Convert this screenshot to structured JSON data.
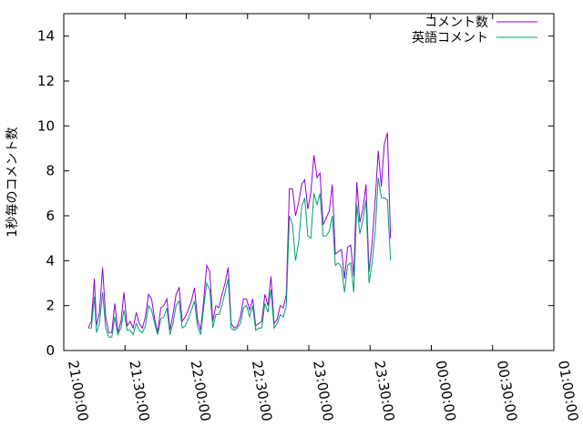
{
  "chart_data": {
    "type": "line",
    "title": "",
    "xlabel": "",
    "ylabel": "1秒毎のコメント数",
    "ylim": [
      0,
      15
    ],
    "yticks": [
      0,
      2,
      4,
      6,
      8,
      10,
      12,
      14
    ],
    "xlim": [
      "21:00:00",
      "01:00:00"
    ],
    "xticks": [
      "21:00:00",
      "21:30:00",
      "22:00:00",
      "22:30:00",
      "23:00:00",
      "23:30:00",
      "00:00:00",
      "00:30:00",
      "01:00:00"
    ],
    "legend_position": "top-right",
    "grid": false,
    "series": [
      {
        "name": "コメント数",
        "color": "#9400d3",
        "points": [
          [
            "21:12:00",
            1.0
          ],
          [
            "21:13:30",
            1.3
          ],
          [
            "21:15:00",
            3.2
          ],
          [
            "21:16:00",
            1.1
          ],
          [
            "21:17:30",
            1.7
          ],
          [
            "21:19:00",
            3.7
          ],
          [
            "21:20:30",
            1.5
          ],
          [
            "21:22:00",
            0.8
          ],
          [
            "21:23:30",
            0.8
          ],
          [
            "21:25:00",
            2.1
          ],
          [
            "21:26:30",
            0.8
          ],
          [
            "21:28:00",
            1.3
          ],
          [
            "21:29:30",
            2.6
          ],
          [
            "21:31:00",
            1.1
          ],
          [
            "21:32:30",
            1.3
          ],
          [
            "21:34:00",
            1.0
          ],
          [
            "21:35:30",
            1.7
          ],
          [
            "21:37:00",
            1.2
          ],
          [
            "21:38:30",
            1.0
          ],
          [
            "21:40:00",
            1.5
          ],
          [
            "21:41:30",
            2.5
          ],
          [
            "21:43:00",
            2.3
          ],
          [
            "21:44:30",
            1.4
          ],
          [
            "21:46:00",
            0.8
          ],
          [
            "21:47:30",
            1.9
          ],
          [
            "21:49:00",
            2.0
          ],
          [
            "21:50:30",
            2.3
          ],
          [
            "21:52:00",
            0.9
          ],
          [
            "21:53:30",
            1.6
          ],
          [
            "21:55:00",
            2.5
          ],
          [
            "21:56:30",
            2.8
          ],
          [
            "21:58:00",
            1.3
          ],
          [
            "21:59:30",
            1.5
          ],
          [
            "22:01:00",
            1.8
          ],
          [
            "22:02:30",
            2.2
          ],
          [
            "22:04:00",
            2.8
          ],
          [
            "22:05:30",
            1.4
          ],
          [
            "22:07:00",
            0.9
          ],
          [
            "22:08:30",
            2.2
          ],
          [
            "22:10:00",
            3.8
          ],
          [
            "22:11:30",
            3.5
          ],
          [
            "22:13:00",
            1.3
          ],
          [
            "22:14:30",
            2.0
          ],
          [
            "22:16:00",
            1.9
          ],
          [
            "22:17:30",
            2.5
          ],
          [
            "22:19:00",
            3.0
          ],
          [
            "22:20:30",
            3.7
          ],
          [
            "22:22:00",
            1.2
          ],
          [
            "22:23:30",
            1.0
          ],
          [
            "22:25:00",
            1.1
          ],
          [
            "22:26:30",
            1.5
          ],
          [
            "22:28:00",
            2.3
          ],
          [
            "22:29:30",
            2.3
          ],
          [
            "22:31:00",
            1.8
          ],
          [
            "22:32:30",
            2.3
          ],
          [
            "22:34:00",
            1.1
          ],
          [
            "22:35:30",
            1.2
          ],
          [
            "22:37:00",
            1.3
          ],
          [
            "22:38:30",
            2.5
          ],
          [
            "22:40:00",
            2.0
          ],
          [
            "22:41:30",
            3.3
          ],
          [
            "22:43:00",
            1.2
          ],
          [
            "22:44:30",
            1.4
          ],
          [
            "22:46:00",
            2.0
          ],
          [
            "22:47:30",
            1.9
          ],
          [
            "22:49:00",
            2.5
          ],
          [
            "22:50:30",
            7.2
          ],
          [
            "22:52:00",
            7.2
          ],
          [
            "22:53:30",
            6.0
          ],
          [
            "22:55:00",
            6.6
          ],
          [
            "22:56:30",
            7.4
          ],
          [
            "22:58:00",
            7.6
          ],
          [
            "22:59:30",
            6.3
          ],
          [
            "23:01:00",
            7.0
          ],
          [
            "23:02:30",
            8.7
          ],
          [
            "23:04:00",
            7.7
          ],
          [
            "23:05:30",
            7.9
          ],
          [
            "23:07:00",
            5.6
          ],
          [
            "23:08:30",
            5.9
          ],
          [
            "23:10:00",
            6.2
          ],
          [
            "23:11:30",
            7.4
          ],
          [
            "23:13:00",
            4.3
          ],
          [
            "23:14:30",
            4.4
          ],
          [
            "23:16:00",
            4.5
          ],
          [
            "23:17:30",
            3.2
          ],
          [
            "23:19:00",
            4.6
          ],
          [
            "23:20:30",
            4.7
          ],
          [
            "23:22:00",
            3.3
          ],
          [
            "23:23:30",
            7.5
          ],
          [
            "23:25:00",
            5.7
          ],
          [
            "23:26:30",
            6.3
          ],
          [
            "23:28:00",
            7.4
          ],
          [
            "23:29:30",
            3.5
          ],
          [
            "23:31:00",
            4.8
          ],
          [
            "23:32:30",
            6.7
          ],
          [
            "23:34:00",
            8.9
          ],
          [
            "23:35:30",
            7.3
          ],
          [
            "23:37:00",
            9.2
          ],
          [
            "23:38:30",
            9.7
          ],
          [
            "23:40:00",
            5.0
          ]
        ]
      },
      {
        "name": "英語コメント",
        "color": "#009e73",
        "points": [
          [
            "21:12:00",
            1.0
          ],
          [
            "21:13:30",
            1.0
          ],
          [
            "21:15:00",
            2.4
          ],
          [
            "21:16:00",
            0.8
          ],
          [
            "21:17:30",
            1.2
          ],
          [
            "21:19:00",
            2.6
          ],
          [
            "21:20:30",
            1.0
          ],
          [
            "21:22:00",
            0.6
          ],
          [
            "21:23:30",
            0.6
          ],
          [
            "21:25:00",
            1.5
          ],
          [
            "21:26:30",
            0.7
          ],
          [
            "21:28:00",
            1.0
          ],
          [
            "21:29:30",
            1.8
          ],
          [
            "21:31:00",
            0.9
          ],
          [
            "21:32:30",
            0.9
          ],
          [
            "21:34:00",
            0.7
          ],
          [
            "21:35:30",
            1.2
          ],
          [
            "21:37:00",
            0.9
          ],
          [
            "21:38:30",
            0.8
          ],
          [
            "21:40:00",
            1.1
          ],
          [
            "21:41:30",
            2.0
          ],
          [
            "21:43:00",
            1.8
          ],
          [
            "21:44:30",
            1.2
          ],
          [
            "21:46:00",
            0.7
          ],
          [
            "21:47:30",
            1.4
          ],
          [
            "21:49:00",
            1.5
          ],
          [
            "21:50:30",
            1.9
          ],
          [
            "21:52:00",
            0.7
          ],
          [
            "21:53:30",
            1.2
          ],
          [
            "21:55:00",
            2.0
          ],
          [
            "21:56:30",
            2.2
          ],
          [
            "21:58:00",
            1.0
          ],
          [
            "21:59:30",
            1.1
          ],
          [
            "22:01:00",
            1.4
          ],
          [
            "22:02:30",
            1.8
          ],
          [
            "22:04:00",
            2.2
          ],
          [
            "22:05:30",
            1.1
          ],
          [
            "22:07:00",
            0.7
          ],
          [
            "22:08:30",
            1.9
          ],
          [
            "22:10:00",
            3.0
          ],
          [
            "22:11:30",
            2.7
          ],
          [
            "22:13:00",
            1.0
          ],
          [
            "22:14:30",
            1.6
          ],
          [
            "22:16:00",
            1.6
          ],
          [
            "22:17:30",
            2.0
          ],
          [
            "22:19:00",
            2.6
          ],
          [
            "22:20:30",
            3.2
          ],
          [
            "22:22:00",
            1.0
          ],
          [
            "22:23:30",
            0.9
          ],
          [
            "22:25:00",
            1.0
          ],
          [
            "22:26:30",
            1.2
          ],
          [
            "22:28:00",
            1.9
          ],
          [
            "22:29:30",
            2.0
          ],
          [
            "22:31:00",
            1.5
          ],
          [
            "22:32:30",
            2.0
          ],
          [
            "22:34:00",
            0.9
          ],
          [
            "22:35:30",
            1.0
          ],
          [
            "22:37:00",
            1.0
          ],
          [
            "22:38:30",
            2.1
          ],
          [
            "22:40:00",
            1.7
          ],
          [
            "22:41:30",
            2.7
          ],
          [
            "22:43:00",
            1.0
          ],
          [
            "22:44:30",
            1.2
          ],
          [
            "22:46:00",
            1.6
          ],
          [
            "22:47:30",
            1.5
          ],
          [
            "22:49:00",
            2.0
          ],
          [
            "22:50:30",
            6.0
          ],
          [
            "22:52:00",
            5.6
          ],
          [
            "22:53:30",
            4.0
          ],
          [
            "22:55:00",
            4.8
          ],
          [
            "22:56:30",
            6.4
          ],
          [
            "22:58:00",
            6.8
          ],
          [
            "22:59:30",
            5.1
          ],
          [
            "23:01:00",
            5.0
          ],
          [
            "23:02:30",
            7.0
          ],
          [
            "23:04:00",
            6.5
          ],
          [
            "23:05:30",
            7.0
          ],
          [
            "23:07:00",
            5.1
          ],
          [
            "23:08:30",
            5.1
          ],
          [
            "23:10:00",
            5.3
          ],
          [
            "23:11:30",
            6.0
          ],
          [
            "23:13:00",
            3.8
          ],
          [
            "23:14:30",
            3.9
          ],
          [
            "23:16:00",
            3.7
          ],
          [
            "23:17:30",
            2.6
          ],
          [
            "23:19:00",
            3.8
          ],
          [
            "23:20:30",
            3.9
          ],
          [
            "23:22:00",
            2.6
          ],
          [
            "23:23:30",
            6.5
          ],
          [
            "23:25:00",
            5.2
          ],
          [
            "23:26:30",
            5.8
          ],
          [
            "23:28:00",
            6.7
          ],
          [
            "23:29:30",
            3.0
          ],
          [
            "23:31:00",
            3.9
          ],
          [
            "23:32:30",
            5.3
          ],
          [
            "23:34:00",
            7.7
          ],
          [
            "23:35:30",
            6.8
          ],
          [
            "23:37:00",
            6.8
          ],
          [
            "23:38:30",
            6.7
          ],
          [
            "23:40:00",
            4.0
          ]
        ]
      }
    ]
  }
}
